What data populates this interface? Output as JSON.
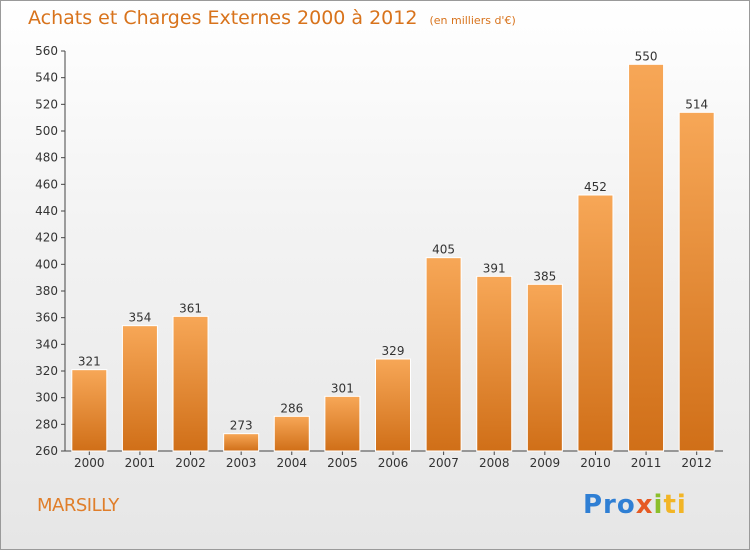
{
  "header": {
    "title": "Achats et Charges Externes 2000 à 2012",
    "unit": "(en milliers d'€)"
  },
  "footer": {
    "city": "MARSILLY",
    "logo": {
      "p1": "Pro",
      "p2": "x",
      "p3": "i",
      "p4": "ti"
    }
  },
  "colors": {
    "bar_top": "#f7a757",
    "bar_bottom": "#d06f18",
    "title": "#d8731c",
    "axis": "#444444"
  },
  "chart_data": {
    "type": "bar",
    "title": "Achats et Charges Externes 2000 à 2012",
    "xlabel": "",
    "ylabel": "",
    "ylim": [
      260,
      560
    ],
    "yticks": [
      260,
      280,
      300,
      320,
      340,
      360,
      380,
      400,
      420,
      440,
      460,
      480,
      500,
      520,
      540,
      560
    ],
    "grid": false,
    "categories": [
      "2000",
      "2001",
      "2002",
      "2003",
      "2004",
      "2005",
      "2006",
      "2007",
      "2008",
      "2009",
      "2010",
      "2011",
      "2012"
    ],
    "values": [
      321,
      354,
      361,
      273,
      286,
      301,
      329,
      405,
      391,
      385,
      452,
      550,
      514
    ]
  }
}
